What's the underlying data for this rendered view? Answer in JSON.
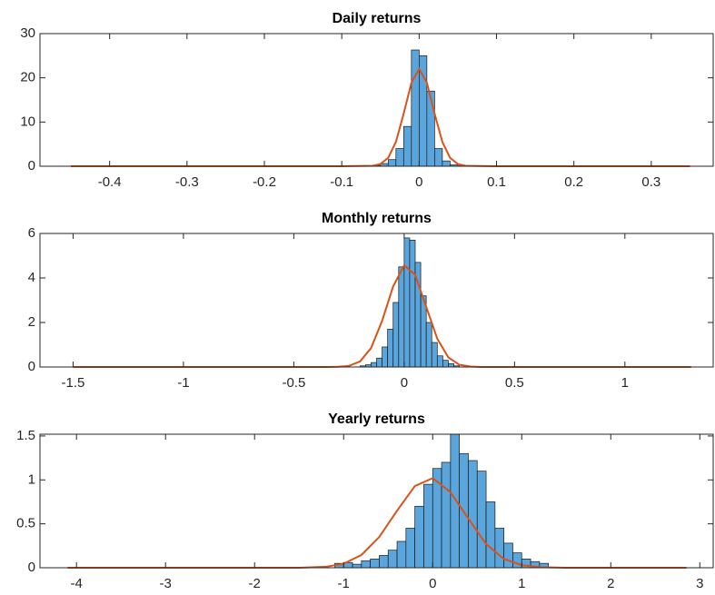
{
  "chart_data": [
    {
      "type": "histogram",
      "title": "Daily returns",
      "bins": [
        -0.07,
        -0.06,
        -0.05,
        -0.04,
        -0.03,
        -0.02,
        -0.01,
        0,
        0.01,
        0.02,
        0.03,
        0.04,
        0.05,
        0.06,
        0.07
      ],
      "values": [
        0.05,
        0.2,
        0.6,
        1.5,
        4,
        9,
        26.3,
        25,
        17,
        4,
        1.2,
        0.3,
        0.1,
        0.05
      ],
      "color": "#5aa5dc",
      "line": {
        "x": [
          -0.45,
          -0.1,
          -0.06,
          -0.05,
          -0.04,
          -0.03,
          -0.02,
          -0.01,
          0,
          0.01,
          0.02,
          0.03,
          0.04,
          0.05,
          0.06,
          0.1,
          0.35
        ],
        "values": [
          0,
          0,
          0.1,
          0.5,
          1.9,
          5.5,
          11.9,
          18.9,
          22,
          18.9,
          11.9,
          5.5,
          1.9,
          0.5,
          0.1,
          0,
          0
        ],
        "color": "#d95319"
      },
      "xlim": [
        -0.49,
        0.38
      ],
      "ylim": [
        0,
        30
      ],
      "xticks": [
        -0.4,
        -0.3,
        -0.2,
        -0.1,
        0,
        0.1,
        0.2,
        0.3
      ],
      "yticks": [
        0,
        10,
        20,
        30
      ]
    },
    {
      "type": "histogram",
      "title": "Monthly returns",
      "bins": [
        -0.2,
        -0.175,
        -0.15,
        -0.125,
        -0.1,
        -0.075,
        -0.05,
        -0.025,
        0,
        0.025,
        0.05,
        0.075,
        0.1,
        0.125,
        0.15,
        0.175,
        0.2,
        0.225,
        0.25
      ],
      "values": [
        0.05,
        0.1,
        0.2,
        0.4,
        0.9,
        1.7,
        2.9,
        4.5,
        5.8,
        5.7,
        4.7,
        3.2,
        2,
        1.1,
        0.5,
        0.3,
        0.15,
        0.05
      ],
      "color": "#5aa5dc",
      "line": {
        "x": [
          -1.5,
          -0.35,
          -0.3,
          -0.25,
          -0.2,
          -0.15,
          -0.1,
          -0.05,
          0,
          0.05,
          0.1,
          0.15,
          0.2,
          0.25,
          0.3,
          0.35,
          1.3
        ],
        "values": [
          0,
          0,
          0.01,
          0.05,
          0.25,
          0.85,
          2.07,
          3.62,
          4.57,
          4.14,
          2.7,
          1.27,
          0.43,
          0.1,
          0.02,
          0,
          0
        ],
        "color": "#d95319"
      },
      "xlim": [
        -1.65,
        1.4
      ],
      "ylim": [
        0,
        6
      ],
      "xticks": [
        -1.5,
        -1,
        -0.5,
        0,
        0.5,
        1
      ],
      "yticks": [
        0,
        2,
        4,
        6
      ]
    },
    {
      "type": "histogram",
      "title": "Yearly returns",
      "bins": [
        -1.1,
        -1,
        -0.9,
        -0.8,
        -0.7,
        -0.6,
        -0.5,
        -0.4,
        -0.3,
        -0.2,
        -0.1,
        0,
        0.1,
        0.2,
        0.3,
        0.4,
        0.5,
        0.6,
        0.7,
        0.8,
        0.9,
        1,
        1.1,
        1.2,
        1.3
      ],
      "values": [
        0.05,
        0.06,
        0.04,
        0.08,
        0.1,
        0.14,
        0.2,
        0.3,
        0.45,
        0.7,
        0.95,
        1.13,
        1.2,
        1.55,
        1.3,
        1.22,
        1.1,
        0.75,
        0.45,
        0.28,
        0.17,
        0.1,
        0.07,
        0.05
      ],
      "color": "#5aa5dc",
      "line": {
        "x": [
          -4.1,
          -1.5,
          -1.2,
          -1,
          -0.8,
          -0.6,
          -0.4,
          -0.2,
          0,
          0.2,
          0.4,
          0.6,
          0.8,
          1,
          1.2,
          1.5,
          2.85
        ],
        "values": [
          0,
          0,
          0.011,
          0.046,
          0.146,
          0.35,
          0.65,
          0.93,
          1.02,
          0.86,
          0.56,
          0.27,
          0.1,
          0.03,
          0.007,
          0,
          0
        ],
        "color": "#d95319"
      },
      "xlim": [
        -4.41,
        3.15
      ],
      "ylim": [
        0,
        1.52
      ],
      "xticks": [
        -4,
        -3,
        -2,
        -1,
        0,
        1,
        2,
        3
      ],
      "yticks": [
        0,
        0.5,
        1,
        1.5
      ]
    }
  ]
}
